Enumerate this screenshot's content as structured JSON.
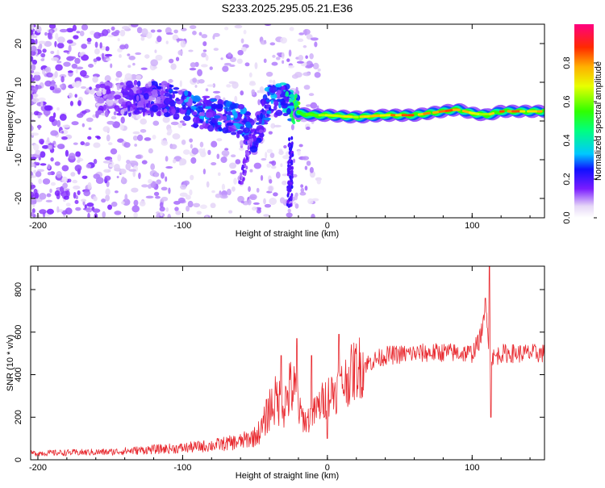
{
  "title": "S233.2025.295.05.21.E36",
  "chart_data": [
    {
      "type": "heatmap",
      "name": "spectrogram",
      "xlabel": "Height of straight line (km)",
      "ylabel": "Frequency (Hz)",
      "xlim": [
        -205,
        150
      ],
      "ylim": [
        -25,
        25
      ],
      "xticks": [
        -200,
        -100,
        0,
        100
      ],
      "yticks": [
        -20,
        -10,
        0,
        10,
        20
      ],
      "colorbar": {
        "label": "Normalized spectral amplitude",
        "range": [
          0,
          1
        ],
        "ticks": [
          "0.0",
          "0.2",
          "0.4",
          "0.6",
          "0.8"
        ],
        "tick_values": [
          0.0,
          0.2,
          0.4,
          0.6,
          0.8
        ]
      },
      "ridge": {
        "description_points_x": [
          -150,
          -130,
          -110,
          -100,
          -90,
          -80,
          -70,
          -60,
          -50,
          -40,
          -30,
          -20,
          -10,
          0,
          20,
          40,
          60,
          80,
          90,
          100,
          110,
          120,
          150
        ],
        "freq_hz": [
          5.5,
          6,
          5.5,
          4,
          2.5,
          2,
          1,
          0,
          -4,
          5,
          6,
          2,
          1.5,
          1.5,
          1,
          1.5,
          1.5,
          2.5,
          3,
          2,
          1.5,
          2.5,
          2.5
        ],
        "amplitude": [
          0.15,
          0.2,
          0.25,
          0.3,
          0.3,
          0.3,
          0.3,
          0.3,
          0.25,
          0.3,
          0.35,
          0.6,
          0.65,
          0.7,
          0.75,
          0.8,
          0.85,
          0.85,
          0.85,
          0.7,
          0.75,
          0.85,
          0.8
        ]
      }
    },
    {
      "type": "line",
      "name": "snr",
      "xlabel": "Height of straight line (km)",
      "ylabel": "SNR (10 * v/v)",
      "xlim": [
        -205,
        150
      ],
      "ylim": [
        0,
        910
      ],
      "xticks": [
        -200,
        -100,
        0,
        100
      ],
      "yticks": [
        0,
        200,
        400,
        600,
        800
      ],
      "color": "#e8282e",
      "envelope_x": [
        -205,
        -150,
        -120,
        -100,
        -80,
        -60,
        -50,
        -45,
        -40,
        -35,
        -30,
        -25,
        -20,
        -15,
        -10,
        -5,
        0,
        10,
        20,
        30,
        40,
        60,
        80,
        100,
        105,
        110,
        112,
        115,
        120,
        150
      ],
      "envelope_y": [
        25,
        30,
        40,
        45,
        55,
        70,
        90,
        120,
        200,
        230,
        210,
        280,
        230,
        180,
        210,
        260,
        300,
        350,
        430,
        460,
        490,
        500,
        505,
        500,
        560,
        700,
        500,
        480,
        500,
        500
      ],
      "spikes": [
        {
          "x": -32,
          "y": 490
        },
        {
          "x": -21,
          "y": 570
        },
        {
          "x": -11,
          "y": 490
        },
        {
          "x": 8,
          "y": 590
        },
        {
          "x": 0,
          "y": 100
        },
        {
          "x": 112,
          "y": 910
        },
        {
          "x": 113,
          "y": 200
        },
        {
          "x": 109,
          "y": 760
        }
      ]
    }
  ]
}
